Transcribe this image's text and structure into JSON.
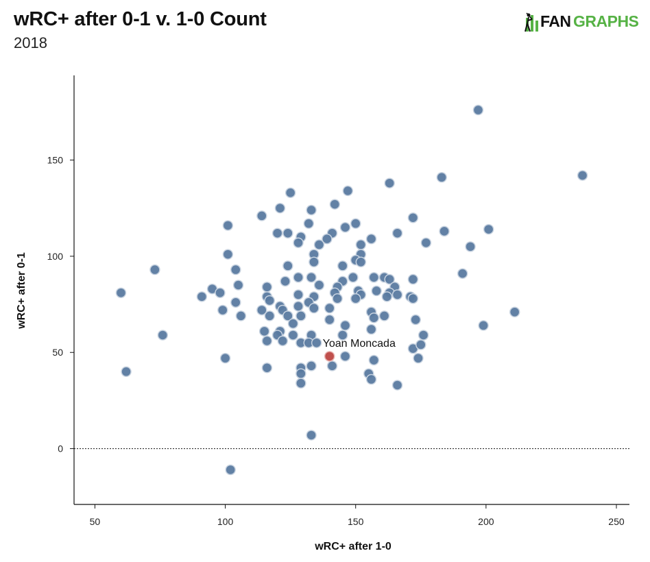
{
  "header": {
    "title": "wRC+ after 0-1 v. 1-0 Count",
    "subtitle": "2018"
  },
  "logo": {
    "part1": "FAN",
    "part2": "GRAPHS",
    "accent_color": "#56b245"
  },
  "chart_data": {
    "type": "scatter",
    "title": "wRC+ after 0-1 v. 1-0 Count",
    "subtitle": "2018",
    "xlabel": "wRC+ after 1-0",
    "ylabel": "wRC+ after 0-1",
    "xlim": [
      42,
      255
    ],
    "ylim": [
      -29,
      194
    ],
    "xticks": [
      50,
      100,
      150,
      200,
      250
    ],
    "yticks": [
      0,
      50,
      100,
      150
    ],
    "reference_line": {
      "y": 0,
      "style": "dotted"
    },
    "grid": false,
    "point_color": "#5a7aa0",
    "highlight_color": "#c0504d",
    "highlight": {
      "label": "Yoan Moncada",
      "x": 140,
      "y": 48
    },
    "points": [
      {
        "x": 197,
        "y": 176
      },
      {
        "x": 237,
        "y": 142
      },
      {
        "x": 183,
        "y": 141
      },
      {
        "x": 163,
        "y": 138
      },
      {
        "x": 125,
        "y": 133
      },
      {
        "x": 147,
        "y": 134
      },
      {
        "x": 142,
        "y": 127
      },
      {
        "x": 121,
        "y": 125
      },
      {
        "x": 133,
        "y": 124
      },
      {
        "x": 114,
        "y": 121
      },
      {
        "x": 172,
        "y": 120
      },
      {
        "x": 101,
        "y": 116
      },
      {
        "x": 132,
        "y": 117
      },
      {
        "x": 150,
        "y": 117
      },
      {
        "x": 146,
        "y": 115
      },
      {
        "x": 201,
        "y": 114
      },
      {
        "x": 184,
        "y": 113
      },
      {
        "x": 120,
        "y": 112
      },
      {
        "x": 124,
        "y": 112
      },
      {
        "x": 141,
        "y": 112
      },
      {
        "x": 166,
        "y": 112
      },
      {
        "x": 129,
        "y": 110
      },
      {
        "x": 139,
        "y": 109
      },
      {
        "x": 156,
        "y": 109
      },
      {
        "x": 128,
        "y": 107
      },
      {
        "x": 136,
        "y": 106
      },
      {
        "x": 152,
        "y": 106
      },
      {
        "x": 177,
        "y": 107
      },
      {
        "x": 194,
        "y": 105
      },
      {
        "x": 101,
        "y": 101
      },
      {
        "x": 134,
        "y": 101
      },
      {
        "x": 152,
        "y": 101
      },
      {
        "x": 150,
        "y": 98
      },
      {
        "x": 134,
        "y": 97
      },
      {
        "x": 104,
        "y": 93
      },
      {
        "x": 73,
        "y": 93
      },
      {
        "x": 124,
        "y": 95
      },
      {
        "x": 145,
        "y": 95
      },
      {
        "x": 152,
        "y": 97
      },
      {
        "x": 191,
        "y": 91
      },
      {
        "x": 128,
        "y": 89
      },
      {
        "x": 133,
        "y": 89
      },
      {
        "x": 149,
        "y": 89
      },
      {
        "x": 157,
        "y": 89
      },
      {
        "x": 161,
        "y": 89
      },
      {
        "x": 123,
        "y": 87
      },
      {
        "x": 145,
        "y": 87
      },
      {
        "x": 163,
        "y": 88
      },
      {
        "x": 172,
        "y": 88
      },
      {
        "x": 105,
        "y": 85
      },
      {
        "x": 116,
        "y": 84
      },
      {
        "x": 136,
        "y": 85
      },
      {
        "x": 143,
        "y": 84
      },
      {
        "x": 165,
        "y": 84
      },
      {
        "x": 60,
        "y": 81
      },
      {
        "x": 95,
        "y": 83
      },
      {
        "x": 98,
        "y": 81
      },
      {
        "x": 142,
        "y": 81
      },
      {
        "x": 151,
        "y": 82
      },
      {
        "x": 158,
        "y": 82
      },
      {
        "x": 163,
        "y": 81
      },
      {
        "x": 91,
        "y": 79
      },
      {
        "x": 116,
        "y": 79
      },
      {
        "x": 128,
        "y": 80
      },
      {
        "x": 134,
        "y": 79
      },
      {
        "x": 152,
        "y": 80
      },
      {
        "x": 162,
        "y": 79
      },
      {
        "x": 166,
        "y": 80
      },
      {
        "x": 171,
        "y": 79
      },
      {
        "x": 117,
        "y": 77
      },
      {
        "x": 104,
        "y": 76
      },
      {
        "x": 121,
        "y": 74
      },
      {
        "x": 128,
        "y": 74
      },
      {
        "x": 132,
        "y": 76
      },
      {
        "x": 143,
        "y": 78
      },
      {
        "x": 150,
        "y": 78
      },
      {
        "x": 172,
        "y": 78
      },
      {
        "x": 99,
        "y": 72
      },
      {
        "x": 114,
        "y": 72
      },
      {
        "x": 122,
        "y": 72
      },
      {
        "x": 140,
        "y": 73
      },
      {
        "x": 134,
        "y": 73
      },
      {
        "x": 156,
        "y": 71
      },
      {
        "x": 211,
        "y": 71
      },
      {
        "x": 106,
        "y": 69
      },
      {
        "x": 117,
        "y": 69
      },
      {
        "x": 124,
        "y": 69
      },
      {
        "x": 129,
        "y": 69
      },
      {
        "x": 157,
        "y": 68
      },
      {
        "x": 161,
        "y": 69
      },
      {
        "x": 140,
        "y": 67
      },
      {
        "x": 173,
        "y": 67
      },
      {
        "x": 126,
        "y": 65
      },
      {
        "x": 146,
        "y": 64
      },
      {
        "x": 199,
        "y": 64
      },
      {
        "x": 115,
        "y": 61
      },
      {
        "x": 121,
        "y": 61
      },
      {
        "x": 156,
        "y": 62
      },
      {
        "x": 76,
        "y": 59
      },
      {
        "x": 120,
        "y": 59
      },
      {
        "x": 126,
        "y": 59
      },
      {
        "x": 133,
        "y": 59
      },
      {
        "x": 145,
        "y": 59
      },
      {
        "x": 176,
        "y": 59
      },
      {
        "x": 116,
        "y": 56
      },
      {
        "x": 122,
        "y": 56
      },
      {
        "x": 129,
        "y": 55
      },
      {
        "x": 132,
        "y": 55
      },
      {
        "x": 135,
        "y": 55
      },
      {
        "x": 172,
        "y": 52
      },
      {
        "x": 175,
        "y": 54
      },
      {
        "x": 100,
        "y": 47
      },
      {
        "x": 146,
        "y": 48
      },
      {
        "x": 157,
        "y": 46
      },
      {
        "x": 174,
        "y": 47
      },
      {
        "x": 133,
        "y": 43
      },
      {
        "x": 141,
        "y": 43
      },
      {
        "x": 116,
        "y": 42
      },
      {
        "x": 129,
        "y": 42
      },
      {
        "x": 62,
        "y": 40
      },
      {
        "x": 129,
        "y": 39
      },
      {
        "x": 155,
        "y": 39
      },
      {
        "x": 156,
        "y": 36
      },
      {
        "x": 129,
        "y": 34
      },
      {
        "x": 166,
        "y": 33
      },
      {
        "x": 133,
        "y": 7
      },
      {
        "x": 102,
        "y": -11
      }
    ]
  }
}
